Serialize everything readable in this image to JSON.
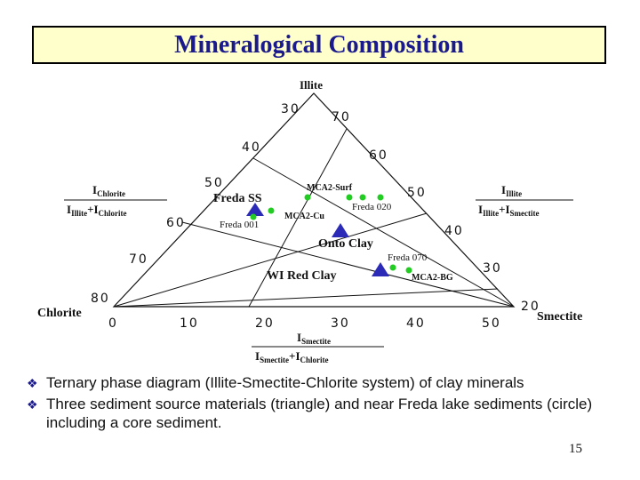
{
  "title": "Mineralogical Composition",
  "diagram": {
    "apex_label": "Illite",
    "left_label": "Chlorite",
    "right_label": "Smectite",
    "left_axis_ticks": [
      "30",
      "40",
      "50",
      "60",
      "70",
      "80"
    ],
    "right_axis_ticks": [
      "70",
      "60",
      "50",
      "40",
      "30",
      "20"
    ],
    "bottom_axis_ticks": [
      "0",
      "10",
      "20",
      "30",
      "40",
      "50"
    ],
    "formula_left": {
      "num": "I",
      "num_sub": "Chlorite",
      "den1": "I",
      "den1_sub": "Illite",
      "den2": "I",
      "den2_sub": "Chlorite"
    },
    "formula_right": {
      "num": "I",
      "num_sub": "Illite",
      "den1": "I",
      "den1_sub": "Illite",
      "den2": "I",
      "den2_sub": "Smectite"
    },
    "formula_bottom": {
      "num": "I",
      "num_sub": "Smectite",
      "den1": "I",
      "den1_sub": "Smectite",
      "den2": "I",
      "den2_sub": "Chlorite"
    },
    "triangle_labels": [
      "Freda SS",
      "Onto Clay",
      "WI Red Clay"
    ],
    "sample_labels": [
      "MCA2-Surf",
      "Freda 020",
      "MCA2-Cu",
      "Freda 001",
      "Freda 070",
      "MCA2-BG"
    ],
    "triangle_color": "#2b2bb8",
    "circle_color": "#22cc22"
  },
  "bullets": [
    "Ternary phase diagram (Illite-Smectite-Chlorite system) of clay minerals",
    "Three sediment source materials (triangle) and near Freda lake sediments (circle) including a core sediment."
  ],
  "page_number": "15"
}
